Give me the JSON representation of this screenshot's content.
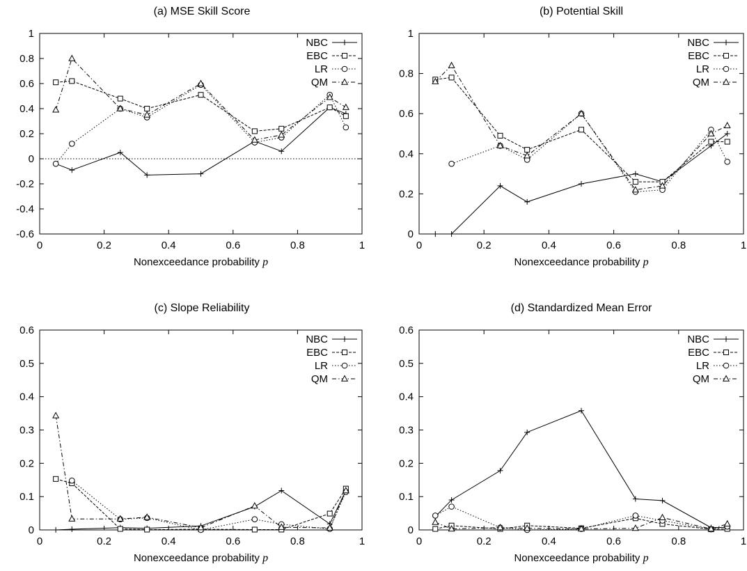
{
  "chart_data": [
    {
      "type": "line",
      "title": "(a) MSE Skill Score",
      "xlabel": "Nonexceedance probability",
      "xlabel_var": "p",
      "xlim": [
        0,
        1
      ],
      "ylim": [
        -0.6,
        1
      ],
      "xticks": [
        "0",
        "0.2",
        "0.4",
        "0.6",
        "0.8",
        "1"
      ],
      "yticks": [
        "-0.6",
        "-0.4",
        "-0.2",
        "0",
        "0.2",
        "0.4",
        "0.6",
        "0.8",
        "1"
      ],
      "reference_lines": [
        0,
        1
      ],
      "legend_position": "top-right",
      "series": [
        {
          "name": "NBC",
          "marker": "plus",
          "dash": "solid",
          "x": [
            0.05,
            0.1,
            0.25,
            0.333,
            0.5,
            0.667,
            0.75,
            0.9,
            0.95
          ],
          "y": [
            -0.04,
            -0.09,
            0.05,
            -0.13,
            -0.12,
            0.14,
            0.06,
            0.41,
            0.36
          ]
        },
        {
          "name": "EBC",
          "marker": "square",
          "dash": "dashed",
          "x": [
            0.05,
            0.1,
            0.25,
            0.333,
            0.5,
            0.667,
            0.75,
            0.9,
            0.95
          ],
          "y": [
            0.61,
            0.62,
            0.48,
            0.4,
            0.51,
            0.22,
            0.24,
            0.41,
            0.34
          ]
        },
        {
          "name": "LR",
          "marker": "circle",
          "dash": "dotted",
          "x": [
            0.05,
            0.1,
            0.25,
            0.333,
            0.5,
            0.667,
            0.75,
            0.9,
            0.95
          ],
          "y": [
            -0.04,
            0.12,
            0.4,
            0.33,
            0.59,
            0.13,
            0.17,
            0.51,
            0.25
          ]
        },
        {
          "name": "QM",
          "marker": "triangle",
          "dash": "dashdot",
          "x": [
            0.05,
            0.1,
            0.25,
            0.333,
            0.5,
            0.667,
            0.75,
            0.9,
            0.95
          ],
          "y": [
            0.39,
            0.8,
            0.4,
            0.35,
            0.6,
            0.15,
            0.19,
            0.49,
            0.41
          ]
        }
      ]
    },
    {
      "type": "line",
      "title": "(b) Potential Skill",
      "xlabel": "Nonexceedance probability",
      "xlabel_var": "p",
      "xlim": [
        0,
        1
      ],
      "ylim": [
        0,
        1
      ],
      "xticks": [
        "0",
        "0.2",
        "0.4",
        "0.6",
        "0.8",
        "1"
      ],
      "yticks": [
        "0",
        "0.2",
        "0.4",
        "0.6",
        "0.8",
        "1"
      ],
      "reference_lines": [],
      "legend_position": "top-right",
      "series": [
        {
          "name": "NBC",
          "marker": "plus",
          "dash": "solid",
          "x": [
            0.05,
            0.1,
            0.25,
            0.333,
            0.5,
            0.667,
            0.75,
            0.9,
            0.95
          ],
          "y": [
            0.0,
            0.0,
            0.24,
            0.16,
            0.25,
            0.3,
            0.26,
            0.44,
            0.5
          ]
        },
        {
          "name": "EBC",
          "marker": "square",
          "dash": "dashed",
          "x": [
            0.05,
            0.1,
            0.25,
            0.333,
            0.5,
            0.667,
            0.75,
            0.9,
            0.95
          ],
          "y": [
            0.77,
            0.78,
            0.49,
            0.42,
            0.52,
            0.26,
            0.26,
            0.46,
            0.46
          ]
        },
        {
          "name": "LR",
          "marker": "circle",
          "dash": "dotted",
          "x": [
            0.1,
            0.25,
            0.333,
            0.5,
            0.667,
            0.75,
            0.9,
            0.95
          ],
          "y": [
            0.35,
            0.44,
            0.37,
            0.6,
            0.21,
            0.22,
            0.52,
            0.36
          ]
        },
        {
          "name": "QM",
          "marker": "triangle",
          "dash": "dashdot",
          "x": [
            0.05,
            0.1,
            0.25,
            0.333,
            0.5,
            0.667,
            0.75,
            0.9,
            0.95
          ],
          "y": [
            0.76,
            0.84,
            0.44,
            0.39,
            0.6,
            0.22,
            0.24,
            0.5,
            0.54
          ]
        }
      ]
    },
    {
      "type": "line",
      "title": "(c) Slope Reliability",
      "xlabel": "Nonexceedance probability",
      "xlabel_var": "p",
      "xlim": [
        0,
        1
      ],
      "ylim": [
        0,
        0.6
      ],
      "xticks": [
        "0",
        "0.2",
        "0.4",
        "0.6",
        "0.8",
        "1"
      ],
      "yticks": [
        "0",
        "0.1",
        "0.2",
        "0.3",
        "0.4",
        "0.5",
        "0.6"
      ],
      "reference_lines": [],
      "legend_position": "top-right",
      "series": [
        {
          "name": "NBC",
          "marker": "plus",
          "dash": "solid",
          "x": [
            0.05,
            0.1,
            0.25,
            0.333,
            0.5,
            0.667,
            0.75,
            0.9,
            0.95
          ],
          "y": [
            0.0,
            0.002,
            0.007,
            0.005,
            0.012,
            0.07,
            0.118,
            0.018,
            0.118
          ]
        },
        {
          "name": "EBC",
          "marker": "square",
          "dash": "dashed",
          "x": [
            0.05,
            0.1,
            0.25,
            0.333,
            0.5,
            0.667,
            0.75,
            0.9,
            0.95
          ],
          "y": [
            0.153,
            0.14,
            0.003,
            0.001,
            0.002,
            0.001,
            0.001,
            0.049,
            0.124
          ]
        },
        {
          "name": "LR",
          "marker": "circle",
          "dash": "dotted",
          "x": [
            0.1,
            0.25,
            0.333,
            0.5,
            0.667,
            0.75,
            0.9,
            0.95
          ],
          "y": [
            0.148,
            0.032,
            0.036,
            0.0,
            0.032,
            0.017,
            0.003,
            0.114
          ]
        },
        {
          "name": "QM",
          "marker": "triangle",
          "dash": "dashdot",
          "x": [
            0.05,
            0.1,
            0.25,
            0.333,
            0.5,
            0.667,
            0.75,
            0.9,
            0.95
          ],
          "y": [
            0.343,
            0.033,
            0.033,
            0.038,
            0.007,
            0.072,
            0.008,
            0.006,
            0.118
          ]
        }
      ]
    },
    {
      "type": "line",
      "title": "(d) Standardized Mean Error",
      "xlabel": "Nonexceedance probability",
      "xlabel_var": "p",
      "xlim": [
        0,
        1
      ],
      "ylim": [
        0,
        0.6
      ],
      "xticks": [
        "0",
        "0.2",
        "0.4",
        "0.6",
        "0.8",
        "1"
      ],
      "yticks": [
        "0",
        "0.1",
        "0.2",
        "0.3",
        "0.4",
        "0.5",
        "0.6"
      ],
      "reference_lines": [],
      "legend_position": "top-right",
      "series": [
        {
          "name": "NBC",
          "marker": "plus",
          "dash": "solid",
          "x": [
            0.05,
            0.1,
            0.25,
            0.333,
            0.5,
            0.667,
            0.75,
            0.9,
            0.95
          ],
          "y": [
            0.04,
            0.09,
            0.178,
            0.293,
            0.358,
            0.093,
            0.088,
            0.007,
            0.008
          ]
        },
        {
          "name": "EBC",
          "marker": "square",
          "dash": "dashed",
          "x": [
            0.05,
            0.1,
            0.25,
            0.333,
            0.5,
            0.667,
            0.75,
            0.9,
            0.95
          ],
          "y": [
            0.003,
            0.013,
            0.003,
            0.013,
            0.005,
            0.035,
            0.018,
            0.002,
            0.003
          ]
        },
        {
          "name": "LR",
          "marker": "circle",
          "dash": "dotted",
          "x": [
            0.05,
            0.1,
            0.25,
            0.333,
            0.5,
            0.667,
            0.75,
            0.9,
            0.95
          ],
          "y": [
            0.043,
            0.07,
            0.007,
            0.0,
            0.003,
            0.043,
            0.028,
            0.002,
            0.01
          ]
        },
        {
          "name": "QM",
          "marker": "triangle",
          "dash": "dashdot",
          "x": [
            0.05,
            0.1,
            0.25,
            0.333,
            0.5,
            0.667,
            0.75,
            0.9,
            0.95
          ],
          "y": [
            0.023,
            0.003,
            0.007,
            0.005,
            0.003,
            0.005,
            0.037,
            0.003,
            0.018
          ]
        }
      ]
    }
  ]
}
